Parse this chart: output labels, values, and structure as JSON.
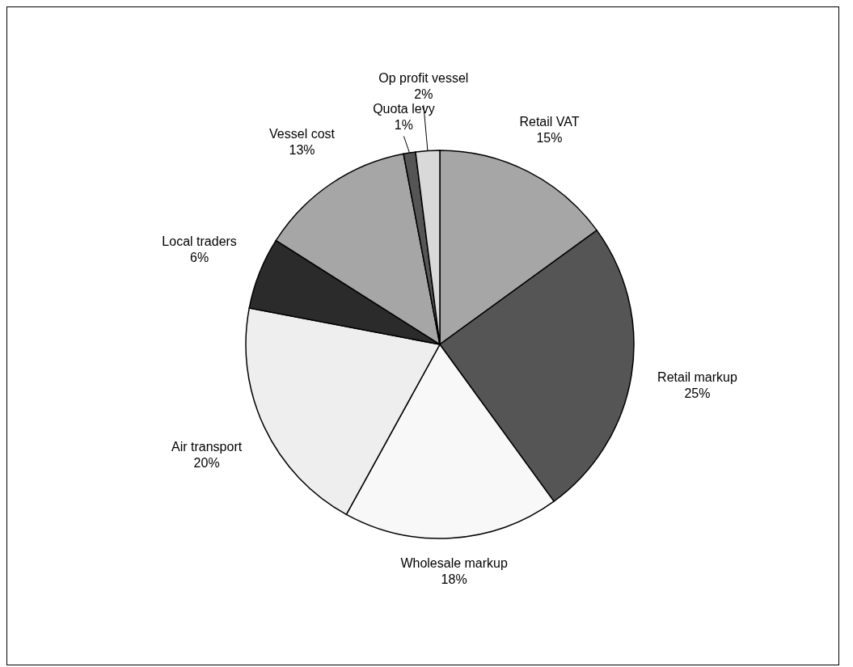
{
  "chart_data": {
    "type": "pie",
    "categories": [
      "Retail VAT",
      "Retail markup",
      "Wholesale markup",
      "Air transport",
      "Local traders",
      "Vessel cost",
      "Quota levy",
      "Op profit vessel"
    ],
    "values": [
      15,
      25,
      18,
      20,
      6,
      13,
      1,
      2
    ],
    "value_labels": [
      "15%",
      "25%",
      "18%",
      "20%",
      "6%",
      "13%",
      "1%",
      "2%"
    ],
    "colors": [
      "#a6a6a6",
      "#555555",
      "#f8f8f8",
      "#eeeeee",
      "#2b2b2b",
      "#a6a6a6",
      "#555555",
      "#d9d9d9"
    ],
    "data_labels": true
  }
}
